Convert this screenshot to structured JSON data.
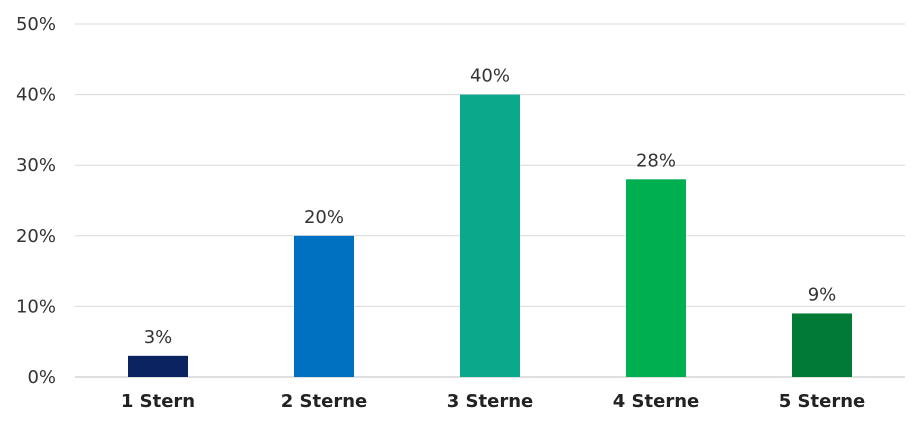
{
  "chart_data": {
    "type": "bar",
    "title": "",
    "xlabel": "",
    "ylabel": "",
    "categories": [
      "1 Stern",
      "2 Sterne",
      "3 Sterne",
      "4 Sterne",
      "5 Sterne"
    ],
    "values": [
      3,
      20,
      40,
      28,
      9
    ],
    "data_labels": [
      "3%",
      "20%",
      "40%",
      "28%",
      "9%"
    ],
    "value_unit": "%",
    "bar_colors": [
      "#0b2461",
      "#0070c0",
      "#0aa98b",
      "#00b050",
      "#007a35"
    ],
    "ylim": [
      0,
      50
    ],
    "y_ticks": [
      0,
      10,
      20,
      30,
      40,
      50
    ],
    "y_tick_labels": [
      "0%",
      "10%",
      "20%",
      "30%",
      "40%",
      "50%"
    ],
    "grid": true,
    "legend": "none"
  }
}
